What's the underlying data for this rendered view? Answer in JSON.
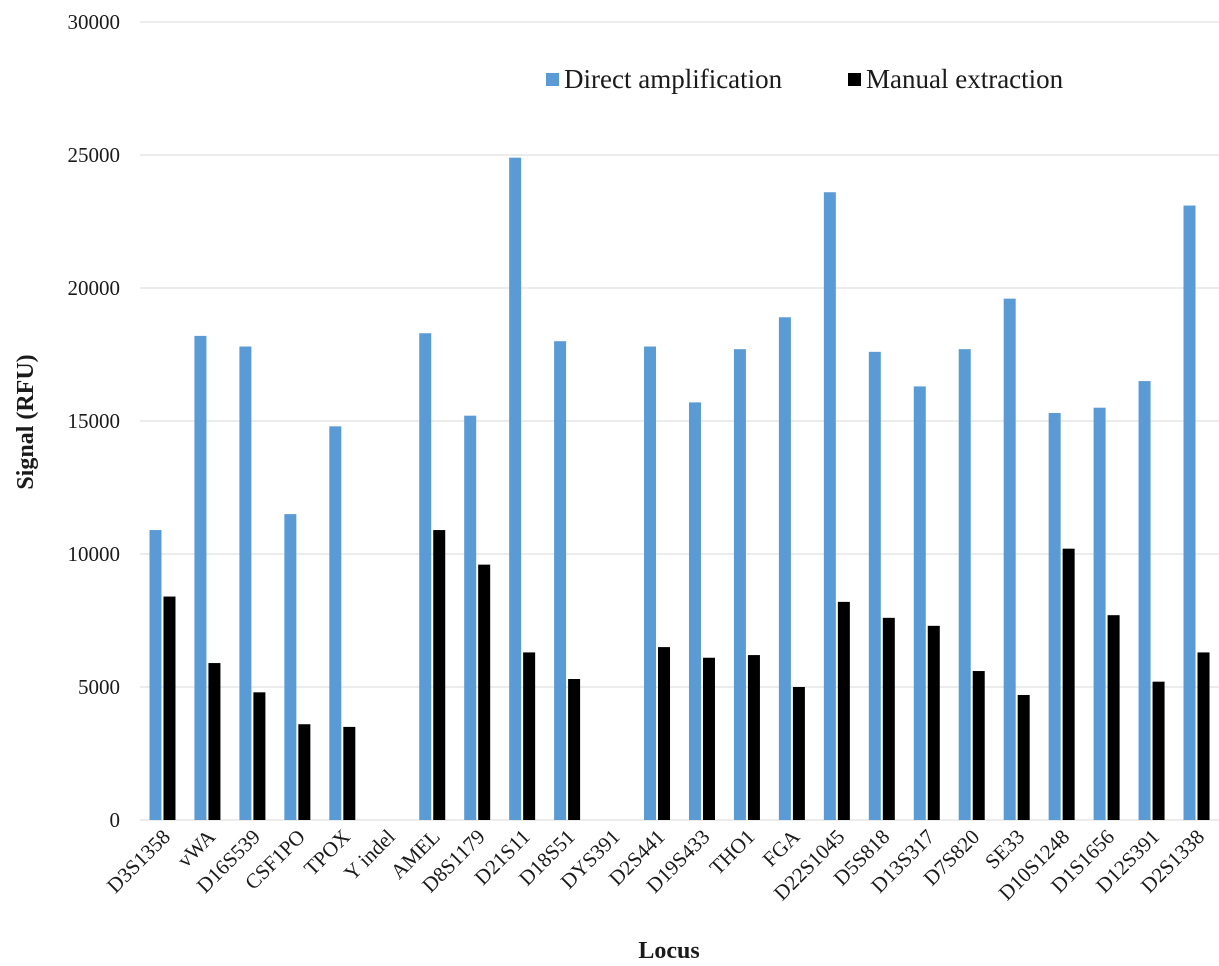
{
  "chart_data": {
    "type": "bar",
    "title": "",
    "xlabel": "Locus",
    "ylabel": "Signal (RFU)",
    "ylim": [
      0,
      30000
    ],
    "yticks": [
      0,
      5000,
      10000,
      15000,
      20000,
      25000,
      30000
    ],
    "grid": true,
    "legend_position": "top-right",
    "categories": [
      "D3S1358",
      "vWA",
      "D16S539",
      "CSF1PO",
      "TPOX",
      "Y indel",
      "AMEL",
      "D8S1179",
      "D21S11",
      "D18S51",
      "DYS391",
      "D2S441",
      "D19S433",
      "THO1",
      "FGA",
      "D22S1045",
      "D5S818",
      "D13S317",
      "D7S820",
      "SE33",
      "D10S1248",
      "D1S1656",
      "D12S391",
      "D2S1338"
    ],
    "series": [
      {
        "name": "Direct amplification",
        "color": "#5b9bd5",
        "values": [
          10900,
          18200,
          17800,
          11500,
          14800,
          0,
          18300,
          15200,
          24900,
          18000,
          0,
          17800,
          15700,
          17700,
          18900,
          23600,
          17600,
          16300,
          17700,
          19600,
          15300,
          15500,
          16500,
          23100
        ]
      },
      {
        "name": "Manual extraction",
        "color": "#000000",
        "values": [
          8400,
          5900,
          4800,
          3600,
          3500,
          0,
          10900,
          9600,
          6300,
          5300,
          0,
          6500,
          6100,
          6200,
          5000,
          8200,
          7600,
          7300,
          5600,
          4700,
          10200,
          7700,
          5200,
          6300
        ]
      }
    ]
  }
}
